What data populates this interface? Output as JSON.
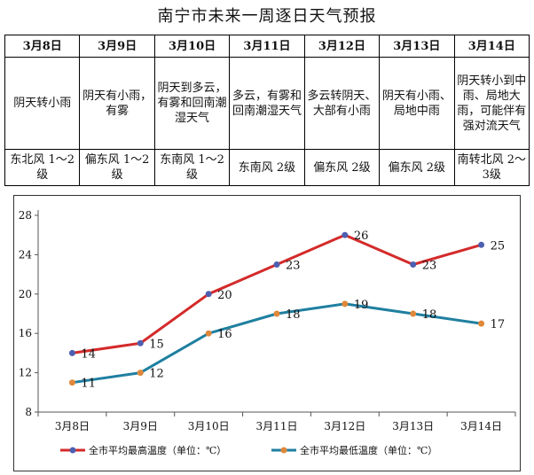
{
  "title": "南宁市未来一周逐日天气预报",
  "forecast": [
    {
      "date": "3月8日",
      "weather": "阴天转小雨",
      "wind": "东北风 1～2级"
    },
    {
      "date": "3月9日",
      "weather": "阴天有小雨，有雾",
      "wind": "偏东风 1～2级"
    },
    {
      "date": "3月10日",
      "weather": "阴天到多云，有雾和回南潮湿天气",
      "wind": "东南风 1～2级"
    },
    {
      "date": "3月11日",
      "weather": "多云，有雾和回南潮湿天气",
      "wind": "东南风 2级"
    },
    {
      "date": "3月12日",
      "weather": "多云转阴天、大部有小雨",
      "wind": "偏东风 2级"
    },
    {
      "date": "3月13日",
      "weather": "阴天有小雨、局地中雨",
      "wind": "偏东风 2级"
    },
    {
      "date": "3月14日",
      "weather": "阴天转小到中雨、局地大雨，可能伴有强对流天气",
      "wind": "南转北风 2～3级"
    }
  ],
  "chart_data": {
    "type": "line",
    "categories": [
      "3月8日",
      "3月9日",
      "3月10日",
      "3月11日",
      "3月12日",
      "3月13日",
      "3月14日"
    ],
    "series": [
      {
        "name": "全市平均最高温度（单位：℃）",
        "values": [
          14,
          15,
          20,
          23,
          26,
          23,
          25
        ],
        "color": "#d42a2a",
        "marker": "#4d5fb0"
      },
      {
        "name": "全市平均最低温度（单位：℃）",
        "values": [
          11,
          12,
          16,
          18,
          19,
          18,
          17
        ],
        "color": "#1f7fa0",
        "marker": "#e0883a"
      }
    ],
    "ylim": [
      8,
      28
    ],
    "yticks": [
      8,
      12,
      16,
      20,
      24,
      28
    ],
    "grid": false,
    "legend": "bottom"
  }
}
